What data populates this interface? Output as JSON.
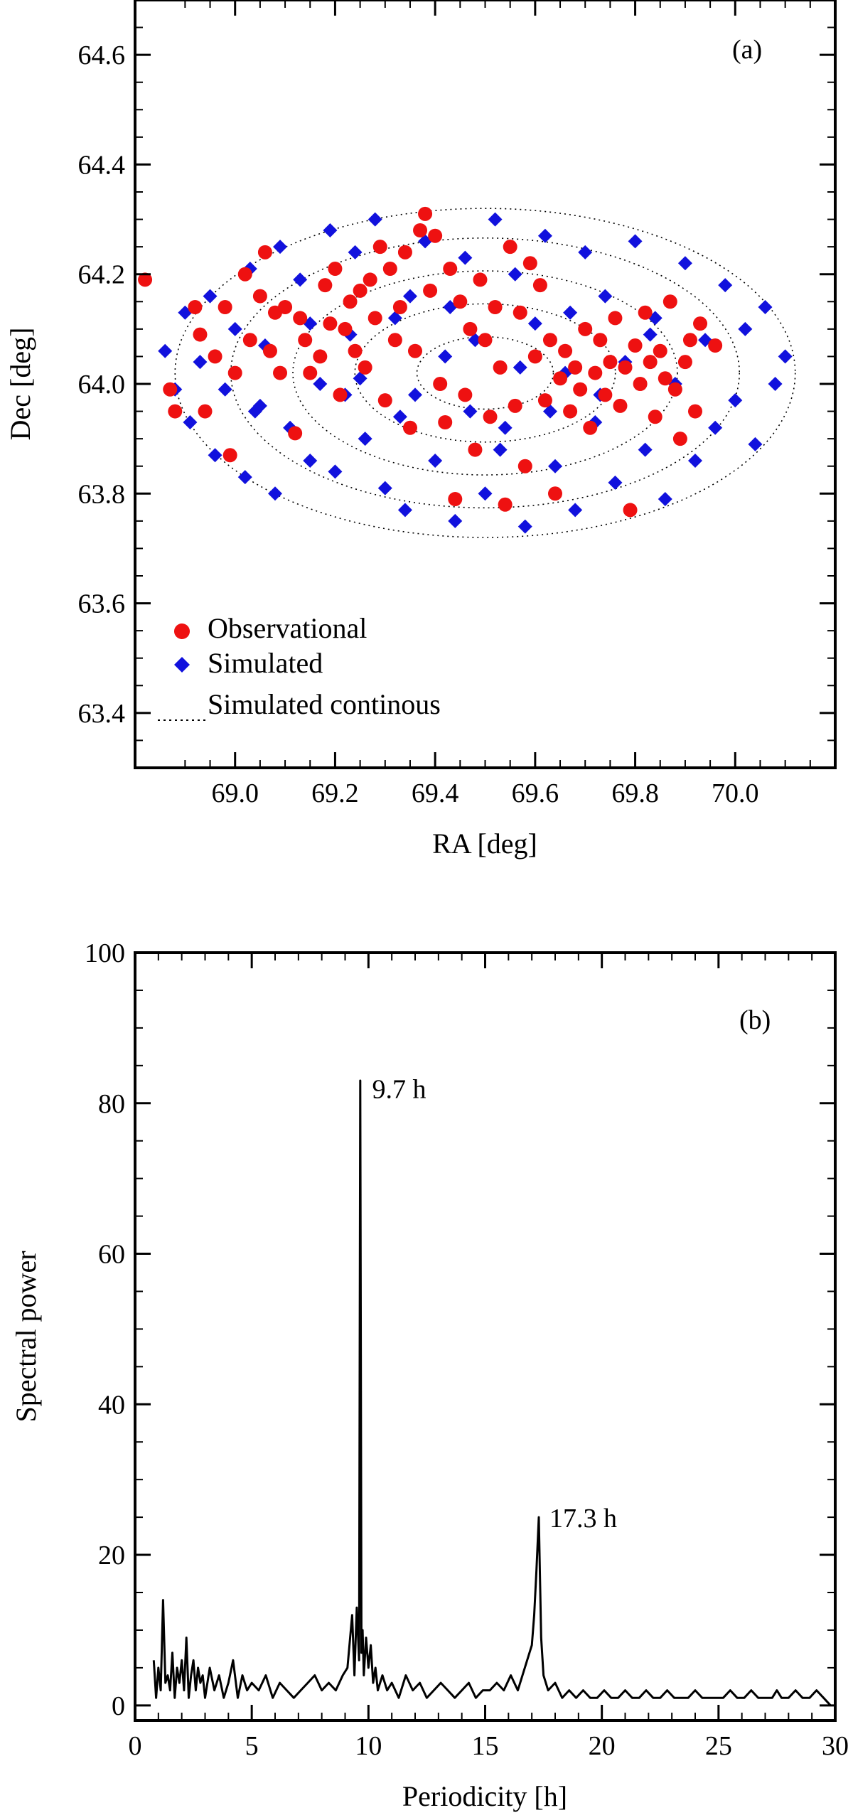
{
  "chart_data": [
    {
      "panel": "(a)",
      "type": "scatter",
      "xlabel": "RA [deg]",
      "ylabel": "Dec [deg]",
      "xlim": [
        68.8,
        70.2
      ],
      "ylim": [
        63.3,
        64.7
      ],
      "xticks": [
        "69.0",
        "69.2",
        "69.4",
        "69.6",
        "69.8",
        "70.0"
      ],
      "xtick_values": [
        69.0,
        69.2,
        69.4,
        69.6,
        69.8,
        70.0
      ],
      "yticks": [
        "63.4",
        "63.6",
        "63.8",
        "64.0",
        "64.2",
        "64.4",
        "64.6"
      ],
      "ytick_values": [
        63.4,
        63.6,
        63.8,
        64.0,
        64.2,
        64.4,
        64.6
      ],
      "legend": {
        "position": "bottom-left",
        "entries": [
          {
            "label": "Observational",
            "marker": "circle",
            "color": "#ee1111"
          },
          {
            "label": "Simulated",
            "marker": "diamond",
            "color": "#1111dd"
          },
          {
            "label": "Simulated continous",
            "marker": "dotted-line",
            "color": "#000000"
          }
        ]
      },
      "continuous_ring": {
        "ra_center": 69.5,
        "dec_center": 64.02,
        "ra_halfwidth": 0.62,
        "dec_halfwidth": 0.3
      },
      "series": [
        {
          "name": "Observational",
          "points": [
            [
              68.82,
              64.19
            ],
            [
              68.87,
              63.99
            ],
            [
              68.88,
              63.95
            ],
            [
              68.92,
              64.14
            ],
            [
              68.93,
              64.09
            ],
            [
              68.94,
              63.95
            ],
            [
              68.96,
              64.05
            ],
            [
              68.98,
              64.14
            ],
            [
              68.99,
              63.87
            ],
            [
              69.0,
              64.02
            ],
            [
              69.02,
              64.2
            ],
            [
              69.03,
              64.08
            ],
            [
              69.05,
              64.16
            ],
            [
              69.06,
              64.24
            ],
            [
              69.07,
              64.06
            ],
            [
              69.08,
              64.13
            ],
            [
              69.09,
              64.02
            ],
            [
              69.1,
              64.14
            ],
            [
              69.12,
              63.91
            ],
            [
              69.13,
              64.12
            ],
            [
              69.14,
              64.08
            ],
            [
              69.15,
              64.02
            ],
            [
              69.17,
              64.05
            ],
            [
              69.18,
              64.18
            ],
            [
              69.19,
              64.11
            ],
            [
              69.2,
              64.21
            ],
            [
              69.21,
              63.98
            ],
            [
              69.22,
              64.1
            ],
            [
              69.23,
              64.15
            ],
            [
              69.24,
              64.06
            ],
            [
              69.25,
              64.17
            ],
            [
              69.26,
              64.03
            ],
            [
              69.27,
              64.19
            ],
            [
              69.28,
              64.12
            ],
            [
              69.29,
              64.25
            ],
            [
              69.3,
              63.97
            ],
            [
              69.31,
              64.21
            ],
            [
              69.32,
              64.08
            ],
            [
              69.33,
              64.14
            ],
            [
              69.34,
              64.24
            ],
            [
              69.35,
              63.92
            ],
            [
              69.36,
              64.06
            ],
            [
              69.37,
              64.28
            ],
            [
              69.38,
              64.31
            ],
            [
              69.39,
              64.17
            ],
            [
              69.4,
              64.27
            ],
            [
              69.41,
              64.0
            ],
            [
              69.42,
              63.93
            ],
            [
              69.43,
              64.21
            ],
            [
              69.44,
              63.79
            ],
            [
              69.45,
              64.15
            ],
            [
              69.46,
              63.98
            ],
            [
              69.47,
              64.1
            ],
            [
              69.48,
              63.88
            ],
            [
              69.49,
              64.19
            ],
            [
              69.5,
              64.08
            ],
            [
              69.51,
              63.94
            ],
            [
              69.52,
              64.14
            ],
            [
              69.53,
              64.03
            ],
            [
              69.54,
              63.78
            ],
            [
              69.55,
              64.25
            ],
            [
              69.56,
              63.96
            ],
            [
              69.57,
              64.13
            ],
            [
              69.58,
              63.85
            ],
            [
              69.59,
              64.22
            ],
            [
              69.6,
              64.05
            ],
            [
              69.61,
              64.18
            ],
            [
              69.62,
              63.97
            ],
            [
              69.63,
              64.08
            ],
            [
              69.64,
              63.8
            ],
            [
              69.65,
              64.01
            ],
            [
              69.66,
              64.06
            ],
            [
              69.67,
              63.95
            ],
            [
              69.68,
              64.03
            ],
            [
              69.69,
              63.99
            ],
            [
              69.7,
              64.1
            ],
            [
              69.71,
              63.92
            ],
            [
              69.72,
              64.02
            ],
            [
              69.73,
              64.08
            ],
            [
              69.74,
              63.98
            ],
            [
              69.75,
              64.04
            ],
            [
              69.76,
              64.12
            ],
            [
              69.77,
              63.96
            ],
            [
              69.78,
              64.03
            ],
            [
              69.79,
              63.77
            ],
            [
              69.8,
              64.07
            ],
            [
              69.81,
              64.0
            ],
            [
              69.82,
              64.13
            ],
            [
              69.83,
              64.04
            ],
            [
              69.84,
              63.94
            ],
            [
              69.85,
              64.06
            ],
            [
              69.86,
              64.01
            ],
            [
              69.87,
              64.15
            ],
            [
              69.88,
              63.99
            ],
            [
              69.89,
              63.9
            ],
            [
              69.9,
              64.04
            ],
            [
              69.91,
              64.08
            ],
            [
              69.92,
              63.95
            ],
            [
              69.93,
              64.11
            ],
            [
              69.96,
              64.07
            ]
          ]
        },
        {
          "name": "Simulated",
          "points": [
            [
              68.86,
              64.06
            ],
            [
              68.88,
              63.99
            ],
            [
              68.9,
              64.13
            ],
            [
              68.91,
              63.93
            ],
            [
              68.93,
              64.04
            ],
            [
              68.95,
              64.16
            ],
            [
              68.96,
              63.87
            ],
            [
              68.98,
              63.99
            ],
            [
              69.0,
              64.1
            ],
            [
              69.02,
              63.83
            ],
            [
              69.03,
              64.21
            ],
            [
              69.04,
              63.95
            ],
            [
              69.06,
              64.07
            ],
            [
              69.08,
              63.8
            ],
            [
              69.09,
              64.25
            ],
            [
              69.11,
              63.92
            ],
            [
              69.13,
              64.19
            ],
            [
              69.15,
              63.86
            ],
            [
              69.17,
              64.0
            ],
            [
              69.19,
              64.28
            ],
            [
              69.2,
              63.84
            ],
            [
              69.22,
              63.98
            ],
            [
              69.24,
              64.24
            ],
            [
              69.26,
              63.9
            ],
            [
              69.28,
              64.3
            ],
            [
              69.3,
              63.81
            ],
            [
              69.32,
              64.12
            ],
            [
              69.34,
              63.77
            ],
            [
              69.36,
              63.98
            ],
            [
              69.38,
              64.26
            ],
            [
              69.4,
              63.86
            ],
            [
              69.42,
              64.05
            ],
            [
              69.44,
              63.75
            ],
            [
              69.46,
              64.23
            ],
            [
              69.48,
              64.08
            ],
            [
              69.5,
              63.8
            ],
            [
              69.52,
              64.3
            ],
            [
              69.54,
              63.92
            ],
            [
              69.56,
              64.2
            ],
            [
              69.58,
              63.74
            ],
            [
              69.6,
              64.11
            ],
            [
              69.62,
              64.27
            ],
            [
              69.64,
              63.85
            ],
            [
              69.66,
              64.02
            ],
            [
              69.68,
              63.77
            ],
            [
              69.7,
              64.24
            ],
            [
              69.72,
              63.93
            ],
            [
              69.74,
              64.16
            ],
            [
              69.76,
              63.82
            ],
            [
              69.78,
              64.04
            ],
            [
              69.8,
              64.26
            ],
            [
              69.82,
              63.88
            ],
            [
              69.84,
              64.12
            ],
            [
              69.86,
              63.79
            ],
            [
              69.88,
              64.0
            ],
            [
              69.9,
              64.22
            ],
            [
              69.92,
              63.86
            ],
            [
              69.94,
              64.08
            ],
            [
              69.96,
              63.92
            ],
            [
              69.98,
              64.18
            ],
            [
              70.0,
              63.97
            ],
            [
              70.02,
              64.1
            ],
            [
              70.04,
              63.89
            ],
            [
              70.06,
              64.14
            ],
            [
              70.08,
              64.0
            ],
            [
              70.1,
              64.05
            ],
            [
              69.35,
              64.16
            ],
            [
              69.47,
              63.95
            ],
            [
              69.57,
              64.03
            ],
            [
              69.67,
              64.13
            ],
            [
              69.25,
              64.01
            ],
            [
              69.15,
              64.11
            ],
            [
              69.05,
              63.96
            ],
            [
              69.73,
              63.98
            ],
            [
              69.83,
              64.09
            ],
            [
              69.43,
              64.14
            ],
            [
              69.53,
              63.88
            ],
            [
              69.63,
              63.95
            ],
            [
              69.33,
              63.94
            ],
            [
              69.23,
              64.09
            ]
          ]
        }
      ]
    },
    {
      "panel": "(b)",
      "type": "line",
      "xlabel": "Periodicity [h]",
      "ylabel": "Spectral power",
      "xlim": [
        0,
        30
      ],
      "ylim": [
        -2,
        100
      ],
      "xticks": [
        "0",
        "5",
        "10",
        "15",
        "20",
        "25",
        "30"
      ],
      "xtick_values": [
        0,
        5,
        10,
        15,
        20,
        25,
        30
      ],
      "yticks": [
        "0",
        "20",
        "40",
        "60",
        "80",
        "100"
      ],
      "ytick_values": [
        0,
        20,
        40,
        60,
        80,
        100
      ],
      "annotations": [
        {
          "text": "9.7 h",
          "x": 9.7,
          "y": 82
        },
        {
          "text": "17.3 h",
          "x": 17.3,
          "y": 25
        }
      ],
      "series": [
        {
          "name": "Spectral power",
          "x": [
            0.8,
            0.9,
            1.0,
            1.1,
            1.2,
            1.3,
            1.4,
            1.5,
            1.6,
            1.7,
            1.8,
            1.9,
            2.0,
            2.1,
            2.2,
            2.3,
            2.4,
            2.5,
            2.6,
            2.7,
            2.8,
            2.9,
            3.0,
            3.2,
            3.4,
            3.6,
            3.8,
            4.0,
            4.2,
            4.4,
            4.6,
            4.8,
            5.0,
            5.3,
            5.6,
            5.9,
            6.2,
            6.5,
            6.8,
            7.1,
            7.4,
            7.7,
            8.0,
            8.3,
            8.6,
            8.9,
            9.1,
            9.3,
            9.4,
            9.5,
            9.6,
            9.65,
            9.7,
            9.75,
            9.8,
            9.9,
            10.0,
            10.1,
            10.2,
            10.3,
            10.4,
            10.6,
            10.8,
            11.0,
            11.3,
            11.6,
            11.9,
            12.2,
            12.5,
            12.8,
            13.1,
            13.4,
            13.7,
            14.0,
            14.3,
            14.6,
            14.9,
            15.2,
            15.5,
            15.8,
            16.1,
            16.4,
            16.7,
            17.0,
            17.1,
            17.2,
            17.3,
            17.4,
            17.5,
            17.7,
            18.0,
            18.3,
            18.6,
            18.9,
            19.2,
            19.5,
            19.8,
            20.1,
            20.4,
            20.7,
            21.0,
            21.3,
            21.6,
            21.9,
            22.2,
            22.5,
            22.8,
            23.1,
            23.4,
            23.7,
            24.0,
            24.3,
            24.6,
            24.9,
            25.2,
            25.5,
            25.8,
            26.1,
            26.4,
            26.7,
            27.0,
            27.3,
            27.5,
            27.7,
            28.0,
            28.3,
            28.6,
            28.9,
            29.2,
            29.5
          ],
          "values": [
            6,
            1,
            5,
            2,
            14,
            3,
            4,
            2,
            7,
            1,
            5,
            3,
            6,
            2,
            9,
            1,
            4,
            6,
            2,
            5,
            3,
            4,
            1,
            5,
            2,
            4,
            1,
            3,
            6,
            1,
            4,
            2,
            3,
            2,
            4,
            1,
            3,
            2,
            1,
            2,
            3,
            4,
            2,
            3,
            2,
            4,
            5,
            12,
            4,
            13,
            6,
            83,
            7,
            10,
            4,
            9,
            5,
            8,
            3,
            5,
            2,
            4,
            2,
            3,
            1,
            4,
            2,
            3,
            1,
            2,
            3,
            2,
            1,
            2,
            3,
            1,
            2,
            2,
            3,
            2,
            4,
            2,
            5,
            8,
            12,
            18,
            25,
            9,
            4,
            2,
            3,
            1,
            2,
            1,
            2,
            1,
            1,
            2,
            1,
            1,
            2,
            1,
            1,
            2,
            1,
            1,
            2,
            1,
            1,
            1,
            2,
            1,
            1,
            1,
            1,
            2,
            1,
            1,
            2,
            1,
            1,
            1,
            2,
            1,
            1,
            2,
            1,
            1,
            2,
            1
          ]
        }
      ]
    }
  ]
}
